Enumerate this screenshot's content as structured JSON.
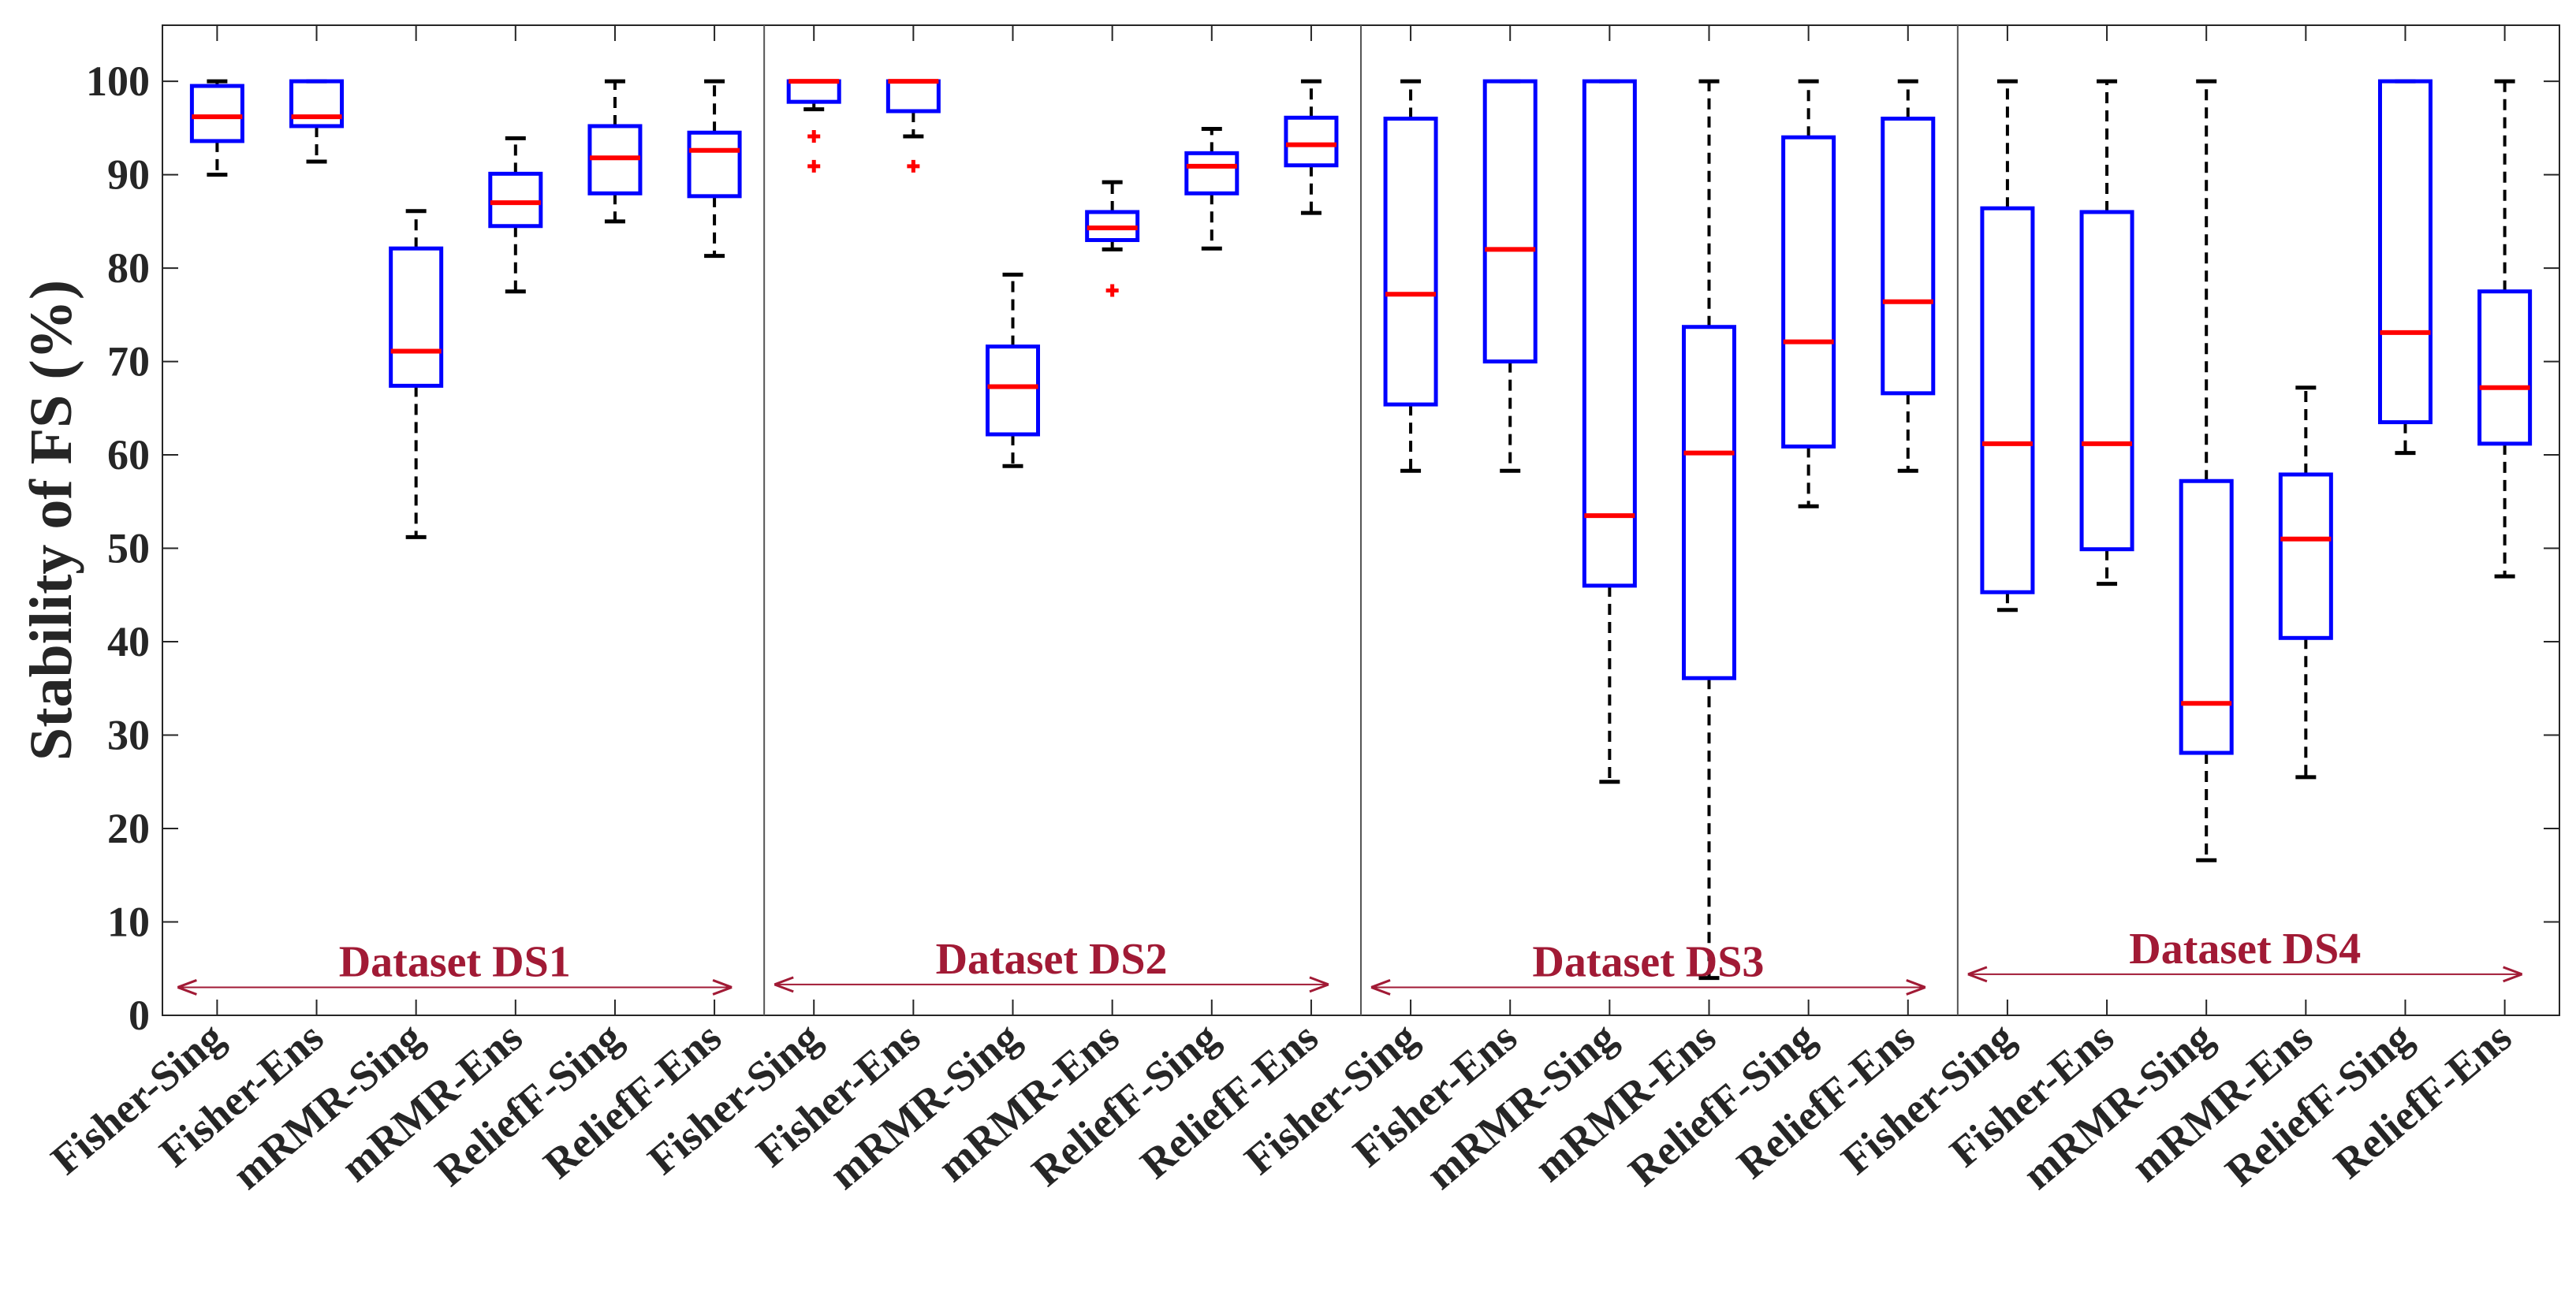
{
  "chart_data": {
    "type": "boxplot",
    "title": "",
    "xlabel": "",
    "ylabel": "Stability of FS (%)",
    "ylim": [
      0,
      106
    ],
    "yticks": [
      0,
      10,
      20,
      30,
      40,
      50,
      60,
      70,
      80,
      90,
      100
    ],
    "grid": false,
    "legend": "none",
    "colors": {
      "box": "#0000FF",
      "median": "#FF0000",
      "whisker": "#000000",
      "outlier": "#FF0000",
      "annotation": "#A11A35",
      "axis": "#262626"
    },
    "categories": [
      "Fisher-Sing",
      "Fisher-Ens",
      "mRMR-Sing",
      "mRMR-Ens",
      "ReliefF-Sing",
      "ReliefF-Ens",
      "Fisher-Sing",
      "Fisher-Ens",
      "mRMR-Sing",
      "mRMR-Ens",
      "ReliefF-Sing",
      "ReliefF-Ens",
      "Fisher-Sing",
      "Fisher-Ens",
      "mRMR-Sing",
      "mRMR-Ens",
      "ReliefF-Sing",
      "ReliefF-Ens",
      "Fisher-Sing",
      "Fisher-Ens",
      "mRMR-Sing",
      "mRMR-Ens",
      "ReliefF-Sing",
      "ReliefF-Ens"
    ],
    "groups": [
      {
        "label": "Dataset DS1",
        "arrow_y": 3
      },
      {
        "label": "Dataset DS2",
        "arrow_y": 3.3
      },
      {
        "label": "Dataset DS3",
        "arrow_y": 3
      },
      {
        "label": "Dataset DS4",
        "arrow_y": 4.4
      }
    ],
    "boxes": [
      {
        "min": 90,
        "q1": 93.6,
        "median": 96.2,
        "q3": 99.5,
        "max": 100,
        "outliers": []
      },
      {
        "min": 91.4,
        "q1": 95.2,
        "median": 96.2,
        "q3": 100,
        "max": 100,
        "outliers": []
      },
      {
        "min": 51.2,
        "q1": 67.4,
        "median": 71.1,
        "q3": 82.1,
        "max": 86.1,
        "outliers": []
      },
      {
        "min": 77.5,
        "q1": 84.5,
        "median": 87,
        "q3": 90.1,
        "max": 93.9,
        "outliers": []
      },
      {
        "min": 85,
        "q1": 88,
        "median": 91.8,
        "q3": 95.2,
        "max": 100,
        "outliers": []
      },
      {
        "min": 81.3,
        "q1": 87.7,
        "median": 92.6,
        "q3": 94.5,
        "max": 100,
        "outliers": []
      },
      {
        "min": 97,
        "q1": 97.8,
        "median": 100,
        "q3": 100,
        "max": 100,
        "outliers": [
          94.1,
          90.9
        ]
      },
      {
        "min": 94.1,
        "q1": 96.8,
        "median": 100,
        "q3": 100,
        "max": 100,
        "outliers": [
          90.9
        ]
      },
      {
        "min": 58.8,
        "q1": 62.2,
        "median": 67.3,
        "q3": 71.6,
        "max": 79.3,
        "outliers": []
      },
      {
        "min": 82,
        "q1": 83,
        "median": 84.3,
        "q3": 86,
        "max": 89.2,
        "outliers": [
          77.6
        ]
      },
      {
        "min": 82.1,
        "q1": 88,
        "median": 90.9,
        "q3": 92.3,
        "max": 94.9,
        "outliers": []
      },
      {
        "min": 85.9,
        "q1": 91,
        "median": 93.2,
        "q3": 96.1,
        "max": 100,
        "outliers": []
      },
      {
        "min": 58.3,
        "q1": 65.4,
        "median": 77.2,
        "q3": 96,
        "max": 100,
        "outliers": []
      },
      {
        "min": 58.3,
        "q1": 70,
        "median": 82,
        "q3": 100,
        "max": 100,
        "outliers": []
      },
      {
        "min": 25,
        "q1": 46,
        "median": 53.5,
        "q3": 100,
        "max": 100,
        "outliers": []
      },
      {
        "min": 4,
        "q1": 36.1,
        "median": 60.2,
        "q3": 73.7,
        "max": 100,
        "outliers": []
      },
      {
        "min": 54.5,
        "q1": 60.9,
        "median": 72.1,
        "q3": 94,
        "max": 100,
        "outliers": []
      },
      {
        "min": 58.3,
        "q1": 66.6,
        "median": 76.4,
        "q3": 96,
        "max": 100,
        "outliers": []
      },
      {
        "min": 43.4,
        "q1": 45.3,
        "median": 61.2,
        "q3": 86.4,
        "max": 100,
        "outliers": []
      },
      {
        "min": 46.2,
        "q1": 49.9,
        "median": 61.2,
        "q3": 86,
        "max": 100,
        "outliers": []
      },
      {
        "min": 16.6,
        "q1": 28.1,
        "median": 33.4,
        "q3": 57.2,
        "max": 100,
        "outliers": []
      },
      {
        "min": 25.5,
        "q1": 40.4,
        "median": 51,
        "q3": 57.9,
        "max": 67.2,
        "outliers": []
      },
      {
        "min": 60.2,
        "q1": 63.5,
        "median": 73.1,
        "q3": 100,
        "max": 100,
        "outliers": []
      },
      {
        "min": 47,
        "q1": 61.2,
        "median": 67.2,
        "q3": 77.5,
        "max": 100,
        "outliers": []
      }
    ]
  }
}
